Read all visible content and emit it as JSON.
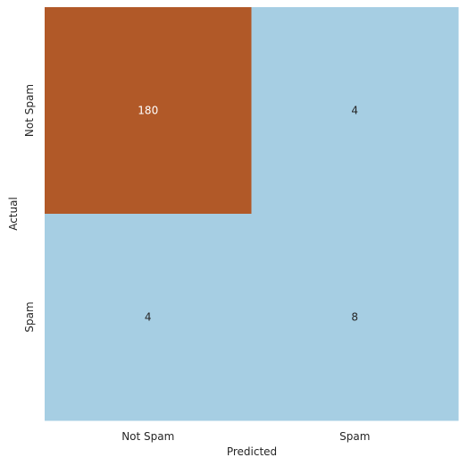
{
  "chart_data": {
    "type": "heatmap",
    "title": "",
    "xlabel": "Predicted",
    "ylabel": "Actual",
    "x_categories": [
      "Not Spam",
      "Spam"
    ],
    "y_categories": [
      "Not Spam",
      "Spam"
    ],
    "matrix": [
      [
        180,
        4
      ],
      [
        4,
        8
      ]
    ],
    "colormap": {
      "low_color": "#a6cee3",
      "high_color": "#b15928"
    },
    "colorbar": false,
    "grid": false
  }
}
